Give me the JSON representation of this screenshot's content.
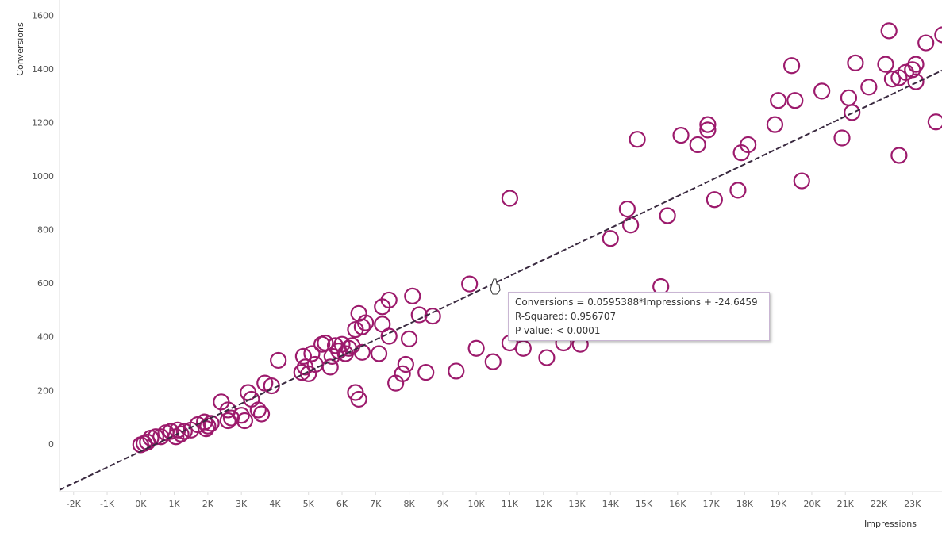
{
  "chart_data": {
    "type": "scatter",
    "x_label": "Impressions",
    "y_label": "Conversions",
    "color": "#9c1a6c",
    "grid": false,
    "xlim": [
      -2420,
      23880
    ],
    "ylim": [
      -175,
      1660
    ],
    "xticks": [
      {
        "value": -2000,
        "label": "-2K"
      },
      {
        "value": -1000,
        "label": "-1K"
      },
      {
        "value": 0,
        "label": "0K"
      },
      {
        "value": 1000,
        "label": "1K"
      },
      {
        "value": 2000,
        "label": "2K"
      },
      {
        "value": 3000,
        "label": "3K"
      },
      {
        "value": 4000,
        "label": "4K"
      },
      {
        "value": 5000,
        "label": "5K"
      },
      {
        "value": 6000,
        "label": "6K"
      },
      {
        "value": 7000,
        "label": "7K"
      },
      {
        "value": 8000,
        "label": "8K"
      },
      {
        "value": 9000,
        "label": "9K"
      },
      {
        "value": 10000,
        "label": "10K"
      },
      {
        "value": 11000,
        "label": "11K"
      },
      {
        "value": 12000,
        "label": "12K"
      },
      {
        "value": 13000,
        "label": "13K"
      },
      {
        "value": 14000,
        "label": "14K"
      },
      {
        "value": 15000,
        "label": "15K"
      },
      {
        "value": 16000,
        "label": "16K"
      },
      {
        "value": 17000,
        "label": "17K"
      },
      {
        "value": 18000,
        "label": "18K"
      },
      {
        "value": 19000,
        "label": "19K"
      },
      {
        "value": 20000,
        "label": "20K"
      },
      {
        "value": 21000,
        "label": "21K"
      },
      {
        "value": 22000,
        "label": "22K"
      },
      {
        "value": 23000,
        "label": "23K"
      }
    ],
    "yticks": [
      0,
      200,
      400,
      600,
      800,
      1000,
      1200,
      1400,
      1600
    ],
    "trendline": {
      "slope": 0.0595388,
      "intercept": -24.6459,
      "color": "#3a2a40"
    },
    "tooltip": [
      "Conversions = 0.0595388*Impressions + -24.6459",
      "R-Squared: 0.956707",
      "P-value: < 0.0001"
    ],
    "x": [
      0,
      100,
      200,
      300,
      450,
      600,
      750,
      900,
      1100,
      1050,
      1300,
      1500,
      1700,
      1900,
      2000,
      2100,
      1950,
      1200,
      2400,
      2600,
      2700,
      2600,
      3000,
      3100,
      3200,
      3300,
      3500,
      3600,
      3700,
      3900,
      4100,
      4800,
      4850,
      4900,
      5000,
      5100,
      5200,
      5400,
      5500,
      5700,
      5650,
      5800,
      5900,
      6000,
      6100,
      6200,
      6300,
      6400,
      6500,
      6600,
      6700,
      6600,
      6400,
      6500,
      7100,
      7200,
      7200,
      7400,
      7400,
      7600,
      7800,
      7900,
      8000,
      8100,
      8300,
      8500,
      8700,
      9400,
      9800,
      10000,
      10500,
      11000,
      11000,
      11400,
      12100,
      12600,
      13100,
      14000,
      14500,
      14600,
      14800,
      15500,
      15700,
      16100,
      16600,
      16900,
      16900,
      17100,
      17800,
      17900,
      18100,
      18900,
      19000,
      19400,
      19500,
      19700,
      20300,
      20900,
      21100,
      21200,
      21300,
      21700,
      22200,
      22300,
      22400,
      22600,
      22600,
      22800,
      23000,
      23100,
      23100,
      23400,
      23700,
      23900
    ],
    "values": [
      0,
      5,
      10,
      25,
      30,
      30,
      45,
      50,
      55,
      30,
      50,
      55,
      75,
      85,
      70,
      80,
      60,
      40,
      160,
      130,
      100,
      90,
      110,
      90,
      195,
      170,
      130,
      115,
      230,
      220,
      315,
      270,
      330,
      290,
      265,
      340,
      300,
      375,
      380,
      330,
      290,
      370,
      350,
      375,
      340,
      360,
      370,
      430,
      490,
      440,
      455,
      345,
      195,
      170,
      340,
      450,
      515,
      540,
      405,
      230,
      265,
      300,
      395,
      555,
      485,
      270,
      480,
      275,
      600,
      360,
      310,
      380,
      920,
      360,
      325,
      380,
      375,
      770,
      880,
      820,
      1140,
      590,
      855,
      1155,
      1120,
      1195,
      1175,
      915,
      950,
      1090,
      1120,
      1195,
      1285,
      1415,
      1285,
      985,
      1320,
      1145,
      1295,
      1240,
      1425,
      1335,
      1420,
      1545,
      1365,
      1370,
      1080,
      1390,
      1400,
      1420,
      1355,
      1500,
      1205,
      1530
    ]
  }
}
